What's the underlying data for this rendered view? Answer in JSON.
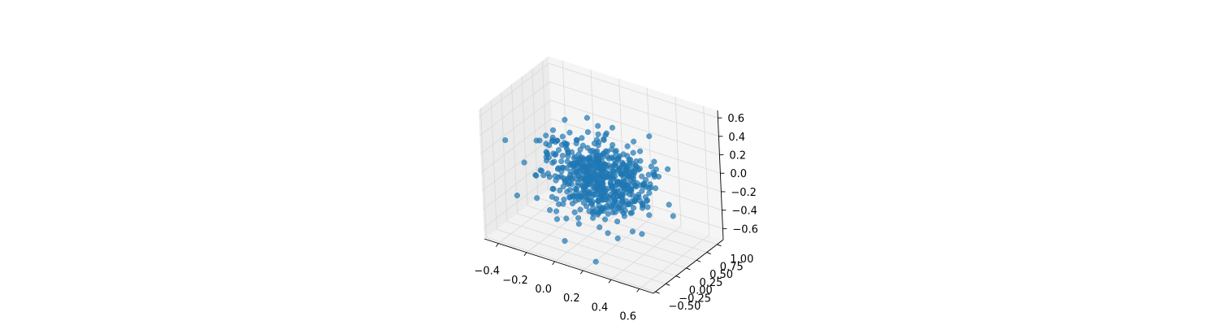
{
  "chart_data": {
    "type": "scatter",
    "projection": "3d",
    "title": "",
    "xlabel": "",
    "ylabel": "",
    "zlabel": "",
    "xlim": [
      -0.5,
      0.7
    ],
    "ylim": [
      -0.55,
      1.15
    ],
    "zlim": [
      -0.72,
      0.68
    ],
    "x_ticks": [
      "−0.4",
      "−0.2",
      "0.0",
      "0.2",
      "0.4",
      "0.6"
    ],
    "x_tick_values": [
      -0.4,
      -0.2,
      0.0,
      0.2,
      0.4,
      0.6
    ],
    "y_ticks": [
      "−0.50",
      "−0.25",
      "0.00",
      "0.25",
      "0.50",
      "0.75",
      "1.00"
    ],
    "y_tick_values": [
      -0.5,
      -0.25,
      0.0,
      0.25,
      0.5,
      0.75,
      1.0
    ],
    "z_ticks": [
      "−0.6",
      "−0.4",
      "−0.2",
      "0.0",
      "0.2",
      "0.4",
      "0.6"
    ],
    "z_tick_values": [
      -0.6,
      -0.4,
      -0.2,
      0.0,
      0.2,
      0.4,
      0.6
    ],
    "grid": true,
    "legend": "none",
    "point_color": "#1f77b4",
    "point_alpha": 0.7,
    "distribution": "approximately Gaussian cloud, about 600 points, centered near (0.1, 0.25, -0.05), spread about 0.2 per axis",
    "series": [
      {
        "points_note": "individual coordinates not readable; representative sample generated from distribution",
        "outlier": {
          "x": 0.25,
          "y": -0.4,
          "z": -0.65
        }
      }
    ]
  }
}
